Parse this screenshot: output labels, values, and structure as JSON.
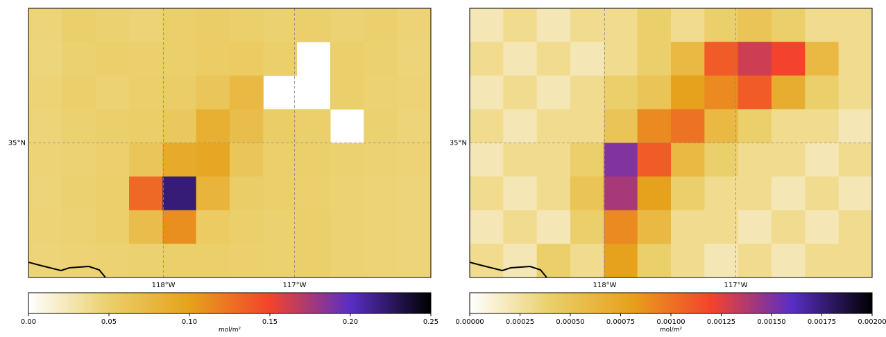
{
  "chart_data": [
    {
      "type": "heatmap",
      "xlim": [
        -119.03,
        -115.96
      ],
      "ylim": [
        33.97,
        36.03
      ],
      "xticks": [
        {
          "value": -118,
          "label": "118°W"
        },
        {
          "value": -117,
          "label": "117°W"
        }
      ],
      "yticks": [
        {
          "value": 35,
          "label": "35°N"
        }
      ],
      "grid": true,
      "values": [
        [
          0.045,
          0.05,
          0.048,
          0.046,
          0.05,
          0.052,
          0.05,
          0.048,
          0.05,
          0.047,
          0.049,
          0.046
        ],
        [
          0.044,
          0.048,
          0.05,
          0.049,
          0.05,
          0.053,
          0.055,
          0.05,
          null,
          0.05,
          0.048,
          0.045
        ],
        [
          0.046,
          0.05,
          0.047,
          0.05,
          0.052,
          0.06,
          0.075,
          null,
          null,
          0.05,
          0.047,
          0.046
        ],
        [
          0.045,
          0.048,
          0.05,
          0.051,
          0.058,
          0.085,
          0.07,
          0.052,
          0.05,
          null,
          0.048,
          0.045
        ],
        [
          0.046,
          0.047,
          0.049,
          0.06,
          0.09,
          0.095,
          0.06,
          0.05,
          0.05,
          0.048,
          0.047,
          0.046
        ],
        [
          0.045,
          0.048,
          0.05,
          0.13,
          0.22,
          0.08,
          0.052,
          0.05,
          0.049,
          0.047,
          0.046,
          0.045
        ],
        [
          0.046,
          0.047,
          0.05,
          0.07,
          0.11,
          0.055,
          0.05,
          0.048,
          0.05,
          0.047,
          0.046,
          0.045
        ],
        [
          0.045,
          0.046,
          0.047,
          0.048,
          0.05,
          0.05,
          0.049,
          0.048,
          0.05,
          0.047,
          0.046,
          0.045
        ]
      ],
      "colormap": [
        "#ffffff",
        "#ebcf6a",
        "#e6a21c",
        "#f4432c",
        "#5a2ec4",
        "#000000"
      ],
      "clim": [
        0,
        0.25
      ],
      "cticks": [
        {
          "value": 0,
          "label": "0.00"
        },
        {
          "value": 0.05,
          "label": "0.05"
        },
        {
          "value": 0.1,
          "label": "0.10"
        },
        {
          "value": 0.15,
          "label": "0.15"
        },
        {
          "value": 0.2,
          "label": "0.20"
        },
        {
          "value": 0.25,
          "label": "0.25"
        }
      ],
      "colorbar_label": "mol/m²"
    },
    {
      "type": "heatmap",
      "xlim": [
        -119.03,
        -115.96
      ],
      "ylim": [
        33.97,
        36.03
      ],
      "xticks": [
        {
          "value": -118,
          "label": "118°W"
        },
        {
          "value": -117,
          "label": "117°W"
        }
      ],
      "yticks": [
        {
          "value": 35,
          "label": "35°N"
        }
      ],
      "grid": true,
      "values": [
        [
          0.0002,
          0.0003,
          0.0002,
          0.0003,
          0.0003,
          0.0004,
          0.0003,
          0.0004,
          0.0005,
          0.0004,
          0.0003,
          0.0003
        ],
        [
          0.0003,
          0.0002,
          0.0003,
          0.0002,
          0.0003,
          0.0004,
          0.0006,
          0.0011,
          0.0013,
          0.0012,
          0.0006,
          0.0003
        ],
        [
          0.0002,
          0.0003,
          0.0002,
          0.0003,
          0.0004,
          0.0005,
          0.0008,
          0.0009,
          0.0011,
          0.0007,
          0.0004,
          0.0003
        ],
        [
          0.0003,
          0.0002,
          0.0003,
          0.0003,
          0.0005,
          0.0009,
          0.001,
          0.0006,
          0.0004,
          0.0003,
          0.0003,
          0.0002
        ],
        [
          0.0002,
          0.0003,
          0.0003,
          0.0004,
          0.0015,
          0.0011,
          0.0006,
          0.0004,
          0.0003,
          0.0003,
          0.0002,
          0.0003
        ],
        [
          0.0003,
          0.0002,
          0.0003,
          0.0005,
          0.0014,
          0.0008,
          0.0004,
          0.0003,
          0.0003,
          0.0002,
          0.0003,
          0.0002
        ],
        [
          0.0002,
          0.0003,
          0.0002,
          0.0004,
          0.0009,
          0.0006,
          0.0003,
          0.0003,
          0.0002,
          0.0003,
          0.0002,
          0.0003
        ],
        [
          0.0003,
          0.0002,
          0.0004,
          0.0003,
          0.0008,
          0.0004,
          0.0003,
          0.0002,
          0.0003,
          0.0002,
          0.0003,
          0.0003
        ]
      ],
      "colormap": [
        "#ffffff",
        "#ebcf6a",
        "#e6a21c",
        "#f4432c",
        "#5a2ec4",
        "#000000"
      ],
      "clim": [
        0,
        0.002
      ],
      "cticks": [
        {
          "value": 0,
          "label": "0.00000"
        },
        {
          "value": 0.00025,
          "label": "0.00025"
        },
        {
          "value": 0.0005,
          "label": "0.00050"
        },
        {
          "value": 0.00075,
          "label": "0.00075"
        },
        {
          "value": 0.001,
          "label": "0.00100"
        },
        {
          "value": 0.00125,
          "label": "0.00125"
        },
        {
          "value": 0.0015,
          "label": "0.00150"
        },
        {
          "value": 0.00175,
          "label": "0.00175"
        },
        {
          "value": 0.002,
          "label": "0.00200"
        }
      ],
      "colorbar_label": "mol/m²"
    }
  ]
}
